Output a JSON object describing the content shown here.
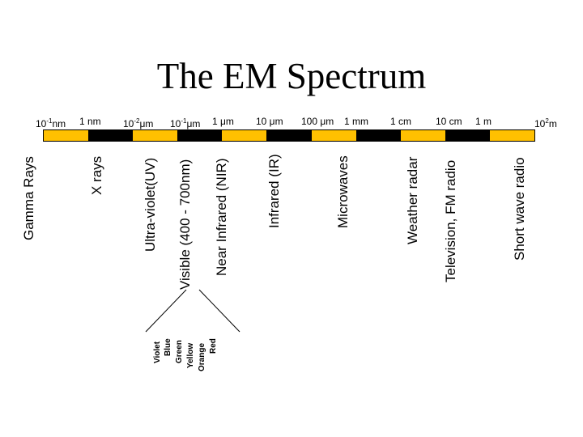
{
  "title": "The EM Spectrum",
  "scale": [
    {
      "base": "10",
      "exp": "-1",
      "unit": "nm"
    },
    {
      "text": "1 nm"
    },
    {
      "base": "10",
      "exp": "-2",
      "unit": "μm"
    },
    {
      "base": "10",
      "exp": "-1",
      "unit": "μm"
    },
    {
      "text": "1 μm"
    },
    {
      "text": "10 μm"
    },
    {
      "text": "100 μm"
    },
    {
      "text": "1 mm"
    },
    {
      "text": "1 cm"
    },
    {
      "text": "10 cm"
    },
    {
      "text": "1 m"
    },
    {
      "base": "10",
      "exp": "2",
      "unit": "m"
    }
  ],
  "bar_colors": {
    "yellow": "#ffc000",
    "black": "#000000"
  },
  "bands": [
    "Gamma Rays",
    "X rays",
    "Ultra-violet(UV)",
    "Visible (400 - 700nm)",
    "Near Infrared (NIR)",
    "Infrared (IR)",
    "Microwaves",
    "Weather radar",
    "Television, FM radio",
    "Short wave radio"
  ],
  "visible_colors": [
    "Violet",
    "Blue",
    "Green",
    "Yellow",
    "Orange",
    "Red"
  ]
}
